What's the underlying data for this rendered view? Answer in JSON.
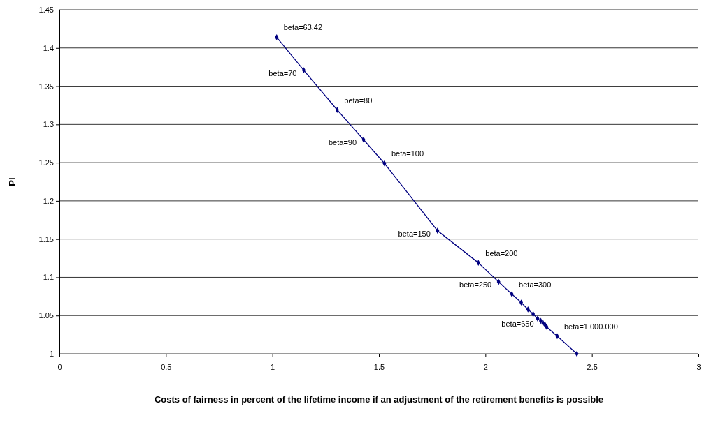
{
  "chart_data": {
    "type": "line",
    "xlabel": "Costs of fairness in percent of the lifetime income if an adjustment of the retirement benefits is possible",
    "ylabel": "Pi",
    "x": [
      1.02,
      1.147,
      1.304,
      1.428,
      1.526,
      1.775,
      1.967,
      2.062,
      2.124,
      2.168,
      2.2,
      2.224,
      2.245,
      2.26,
      2.271,
      2.282,
      2.288,
      2.337,
      2.429
    ],
    "series": [
      {
        "color": "#000080",
        "values": [
          1.414,
          1.371,
          1.319,
          1.28,
          1.249,
          1.161,
          1.119,
          1.094,
          1.078,
          1.067,
          1.058,
          1.052,
          1.046,
          1.043,
          1.04,
          1.037,
          1.035,
          1.023,
          1.0
        ]
      }
    ],
    "xlim": [
      0,
      3
    ],
    "xticks": [
      0,
      0.5,
      1,
      1.5,
      2,
      2.5,
      3
    ],
    "ylim": [
      1,
      1.45
    ],
    "yticks": [
      1,
      1.05,
      1.1,
      1.15,
      1.2,
      1.25,
      1.3,
      1.35,
      1.4,
      1.45
    ],
    "grid": "y",
    "marker": "diamond",
    "line_style": "solid",
    "annotations": [
      {
        "text": "beta=63.42",
        "x": 1.02,
        "y": 1.414
      },
      {
        "text": "beta=70",
        "x": 1.147,
        "y": 1.371
      },
      {
        "text": "beta=80",
        "x": 1.304,
        "y": 1.319
      },
      {
        "text": "beta=90",
        "x": 1.428,
        "y": 1.28
      },
      {
        "text": "beta=100",
        "x": 1.526,
        "y": 1.249
      },
      {
        "text": "beta=150",
        "x": 1.775,
        "y": 1.161
      },
      {
        "text": "beta=200",
        "x": 1.967,
        "y": 1.119
      },
      {
        "text": "beta=250",
        "x": 2.062,
        "y": 1.094
      },
      {
        "text": "beta=300",
        "x": 2.124,
        "y": 1.078
      },
      {
        "text": "beta=650",
        "x": 2.26,
        "y": 1.043
      },
      {
        "text": "beta=1.000.000",
        "x": 2.337,
        "y": 1.023
      }
    ]
  }
}
